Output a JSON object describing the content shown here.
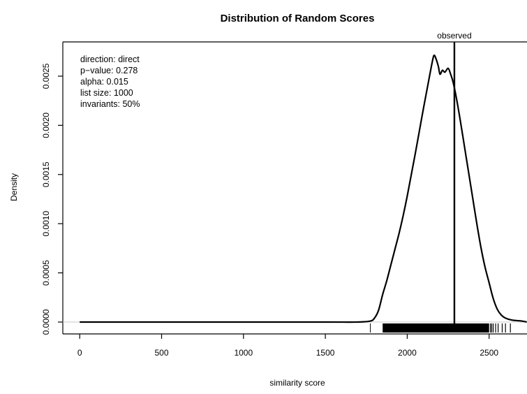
{
  "chart_data": {
    "type": "line",
    "title": "Distribution of Random Scores",
    "xlabel": "similarity score",
    "ylabel": "Density",
    "xlim": [
      -100,
      2730
    ],
    "ylim": [
      -0.0001,
      0.00285
    ],
    "x_ticks": [
      0,
      500,
      1000,
      1500,
      2000,
      2500
    ],
    "x_tick_labels": [
      "0",
      "500",
      "1000",
      "1500",
      "2000",
      "2500"
    ],
    "y_ticks": [
      0.0,
      0.0005,
      0.001,
      0.0015,
      0.002,
      0.0025
    ],
    "y_tick_labels": [
      "0.0000",
      "0.0005",
      "0.0010",
      "0.0015",
      "0.0020",
      "0.0025"
    ],
    "grid": false,
    "series": [
      {
        "style": "density-curve",
        "color": "#000000",
        "x": [
          0,
          500,
          1000,
          1500,
          1700,
          1775,
          1800,
          1825,
          1850,
          1875,
          1900,
          1925,
          1950,
          1975,
          2000,
          2025,
          2050,
          2075,
          2100,
          2125,
          2150,
          2163,
          2175,
          2190,
          2200,
          2215,
          2230,
          2250,
          2265,
          2280,
          2300,
          2325,
          2350,
          2375,
          2400,
          2425,
          2450,
          2475,
          2500,
          2525,
          2550,
          2575,
          2600,
          2640,
          2700,
          2730
        ],
        "y": [
          0.0,
          0.0,
          0.0,
          0.0,
          0.0,
          1e-05,
          4e-05,
          0.00012,
          0.00028,
          0.00042,
          0.00058,
          0.00074,
          0.0009,
          0.00108,
          0.00128,
          0.0015,
          0.00172,
          0.00195,
          0.00218,
          0.0024,
          0.00262,
          0.00271,
          0.00268,
          0.0026,
          0.00252,
          0.00256,
          0.00254,
          0.00258,
          0.00252,
          0.00244,
          0.00228,
          0.00204,
          0.00178,
          0.00152,
          0.00126,
          0.001,
          0.00076,
          0.00056,
          0.0004,
          0.00024,
          0.00013,
          7e-05,
          4e-05,
          2e-05,
          1e-05,
          0.0
        ]
      }
    ],
    "observed": {
      "label": "observed",
      "x": 2288
    },
    "rug": {
      "outlier_x": 1775,
      "dense_from": 1850,
      "dense_to": 2500,
      "sparse_x": [
        2508,
        2516,
        2525,
        2540,
        2555,
        2580,
        2600,
        2630
      ]
    },
    "annotations": [
      "direction: direct",
      "p−value: 0.278",
      "alpha: 0.015",
      "list size: 1000",
      "invariants: 50%"
    ]
  }
}
